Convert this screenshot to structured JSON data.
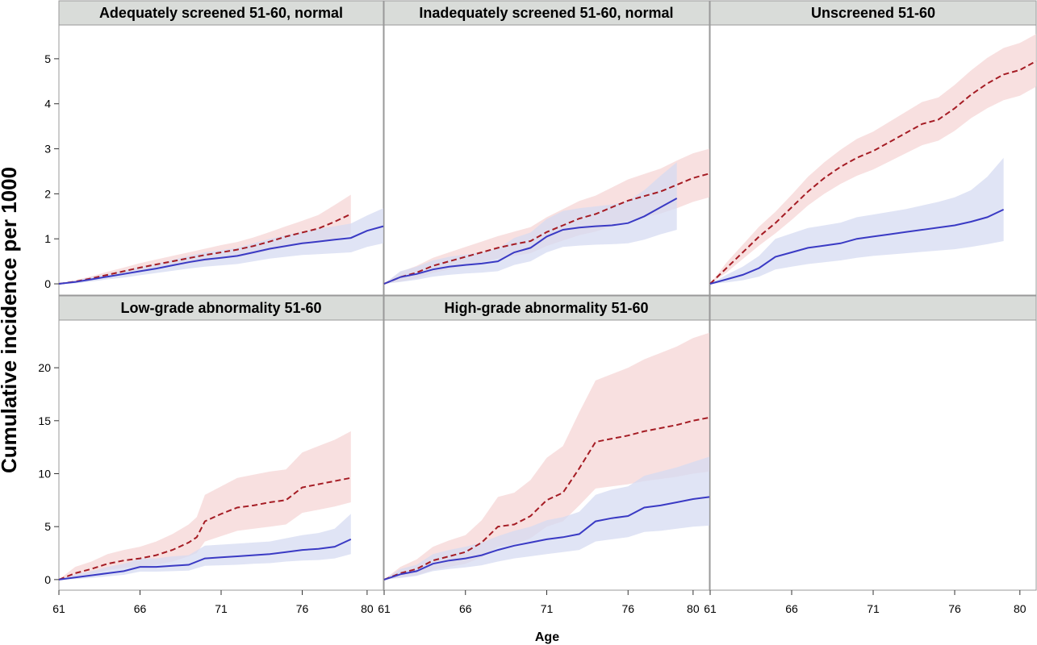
{
  "figure": {
    "ylabel": "Cumulative incidence per 1000",
    "xlabel": "Age"
  },
  "colors": {
    "series_a_line": "#a51c24",
    "series_a_band": "#f5d6d6",
    "series_b_line": "#3a3ac4",
    "series_b_band": "#d6dbf1",
    "strip_fill": "#d9dcd9",
    "panel_border": "#999999"
  },
  "chart_data": [
    {
      "type": "line",
      "title": "Adequately screened 51-60, normal",
      "xlim": [
        61,
        81
      ],
      "ylim": [
        -0.25,
        5.75
      ],
      "xticks": [
        61,
        66,
        71,
        76,
        80
      ],
      "yticks": [
        0,
        1,
        2,
        3,
        4,
        5
      ],
      "series": [
        {
          "style": "dashed",
          "x": [
            61,
            62,
            63,
            64,
            65,
            66,
            67,
            68,
            69,
            70,
            71,
            72,
            73,
            74,
            75,
            76,
            77,
            78,
            79
          ],
          "y": [
            0.0,
            0.05,
            0.12,
            0.2,
            0.28,
            0.36,
            0.43,
            0.5,
            0.57,
            0.64,
            0.7,
            0.76,
            0.84,
            0.94,
            1.05,
            1.14,
            1.23,
            1.38,
            1.55
          ],
          "lower": [
            0.0,
            0.02,
            0.08,
            0.14,
            0.2,
            0.27,
            0.33,
            0.39,
            0.45,
            0.5,
            0.55,
            0.6,
            0.66,
            0.74,
            0.82,
            0.88,
            0.93,
            1.0,
            1.1
          ],
          "upper": [
            0.0,
            0.08,
            0.17,
            0.27,
            0.36,
            0.46,
            0.54,
            0.62,
            0.7,
            0.78,
            0.86,
            0.93,
            1.03,
            1.15,
            1.28,
            1.4,
            1.53,
            1.75,
            1.98
          ]
        },
        {
          "style": "solid",
          "x": [
            61,
            62,
            63,
            64,
            65,
            66,
            67,
            68,
            69,
            70,
            71,
            72,
            73,
            74,
            75,
            76,
            77,
            78,
            79,
            80,
            81
          ],
          "y": [
            0.0,
            0.04,
            0.1,
            0.16,
            0.22,
            0.28,
            0.34,
            0.41,
            0.48,
            0.54,
            0.58,
            0.62,
            0.7,
            0.78,
            0.84,
            0.9,
            0.94,
            0.98,
            1.02,
            1.18,
            1.28
          ],
          "lower": [
            0.0,
            0.01,
            0.05,
            0.1,
            0.14,
            0.19,
            0.24,
            0.29,
            0.34,
            0.38,
            0.41,
            0.44,
            0.5,
            0.56,
            0.6,
            0.64,
            0.66,
            0.68,
            0.7,
            0.82,
            0.9
          ],
          "upper": [
            0.0,
            0.07,
            0.15,
            0.22,
            0.3,
            0.37,
            0.44,
            0.53,
            0.62,
            0.7,
            0.75,
            0.8,
            0.9,
            1.0,
            1.08,
            1.16,
            1.22,
            1.28,
            1.34,
            1.52,
            1.68
          ]
        }
      ]
    },
    {
      "type": "line",
      "title": "Inadequately screened 51-60, normal",
      "xlim": [
        61,
        81
      ],
      "ylim": [
        -0.25,
        5.75
      ],
      "xticks": [
        61,
        66,
        71,
        76,
        80
      ],
      "yticks": [
        0,
        1,
        2,
        3,
        4,
        5
      ],
      "series": [
        {
          "style": "dashed",
          "x": [
            61,
            62,
            63,
            64,
            65,
            66,
            67,
            68,
            69,
            70,
            71,
            72,
            73,
            74,
            75,
            76,
            77,
            78,
            79,
            80,
            81
          ],
          "y": [
            0.0,
            0.15,
            0.25,
            0.4,
            0.5,
            0.6,
            0.7,
            0.8,
            0.88,
            0.95,
            1.15,
            1.3,
            1.45,
            1.55,
            1.7,
            1.85,
            1.95,
            2.05,
            2.2,
            2.35,
            2.45
          ],
          "lower": [
            0.0,
            0.05,
            0.12,
            0.24,
            0.32,
            0.4,
            0.48,
            0.56,
            0.62,
            0.68,
            0.84,
            0.96,
            1.08,
            1.16,
            1.28,
            1.4,
            1.48,
            1.56,
            1.68,
            1.82,
            1.92
          ],
          "upper": [
            0.0,
            0.26,
            0.4,
            0.58,
            0.7,
            0.82,
            0.94,
            1.06,
            1.16,
            1.26,
            1.48,
            1.66,
            1.84,
            1.96,
            2.14,
            2.32,
            2.44,
            2.56,
            2.74,
            2.9,
            3.0
          ]
        },
        {
          "style": "solid",
          "x": [
            61,
            62,
            63,
            64,
            65,
            66,
            67,
            68,
            69,
            70,
            71,
            72,
            73,
            74,
            75,
            76,
            77,
            78,
            79
          ],
          "y": [
            0.0,
            0.15,
            0.22,
            0.32,
            0.38,
            0.42,
            0.45,
            0.5,
            0.7,
            0.8,
            1.05,
            1.2,
            1.25,
            1.28,
            1.3,
            1.35,
            1.5,
            1.7,
            1.9
          ],
          "lower": [
            0.0,
            0.04,
            0.09,
            0.16,
            0.2,
            0.23,
            0.25,
            0.28,
            0.42,
            0.5,
            0.7,
            0.82,
            0.85,
            0.87,
            0.88,
            0.9,
            0.98,
            1.1,
            1.2
          ],
          "upper": [
            0.0,
            0.28,
            0.38,
            0.52,
            0.6,
            0.65,
            0.7,
            0.78,
            1.02,
            1.14,
            1.44,
            1.62,
            1.68,
            1.72,
            1.76,
            1.84,
            2.08,
            2.4,
            2.7
          ]
        }
      ]
    },
    {
      "type": "line",
      "title": "Unscreened 51-60",
      "xlim": [
        61,
        81
      ],
      "ylim": [
        -0.25,
        5.75
      ],
      "xticks": [
        61,
        66,
        71,
        76,
        80
      ],
      "yticks": [
        0,
        1,
        2,
        3,
        4,
        5
      ],
      "series": [
        {
          "style": "dashed",
          "x": [
            61,
            62,
            63,
            64,
            65,
            66,
            67,
            68,
            69,
            70,
            71,
            72,
            73,
            74,
            75,
            76,
            77,
            78,
            79,
            80,
            81
          ],
          "y": [
            0.0,
            0.35,
            0.7,
            1.05,
            1.35,
            1.7,
            2.05,
            2.35,
            2.6,
            2.8,
            2.95,
            3.15,
            3.35,
            3.55,
            3.65,
            3.9,
            4.2,
            4.45,
            4.65,
            4.75,
            4.95
          ],
          "lower": [
            0.0,
            0.25,
            0.55,
            0.85,
            1.12,
            1.42,
            1.74,
            2.0,
            2.22,
            2.4,
            2.54,
            2.72,
            2.9,
            3.08,
            3.18,
            3.4,
            3.68,
            3.9,
            4.08,
            4.18,
            4.38
          ],
          "upper": [
            0.0,
            0.47,
            0.87,
            1.27,
            1.6,
            1.98,
            2.38,
            2.7,
            2.98,
            3.22,
            3.38,
            3.6,
            3.82,
            4.04,
            4.14,
            4.42,
            4.74,
            5.02,
            5.24,
            5.35,
            5.55
          ]
        },
        {
          "style": "solid",
          "x": [
            61,
            62,
            63,
            64,
            65,
            66,
            67,
            68,
            69,
            70,
            71,
            72,
            73,
            74,
            75,
            76,
            77,
            78,
            79
          ],
          "y": [
            0.0,
            0.1,
            0.2,
            0.35,
            0.6,
            0.7,
            0.8,
            0.85,
            0.9,
            1.0,
            1.05,
            1.1,
            1.15,
            1.2,
            1.25,
            1.3,
            1.38,
            1.48,
            1.65
          ],
          "lower": [
            0.0,
            0.03,
            0.08,
            0.16,
            0.32,
            0.38,
            0.44,
            0.48,
            0.52,
            0.58,
            0.62,
            0.65,
            0.68,
            0.71,
            0.74,
            0.77,
            0.82,
            0.88,
            0.95
          ],
          "upper": [
            0.0,
            0.2,
            0.38,
            0.62,
            1.0,
            1.12,
            1.24,
            1.3,
            1.36,
            1.48,
            1.54,
            1.6,
            1.66,
            1.74,
            1.82,
            1.92,
            2.08,
            2.38,
            2.8
          ]
        }
      ]
    },
    {
      "type": "line",
      "title": "Low-grade abnormality 51-60",
      "xlim": [
        61,
        81
      ],
      "ylim": [
        -1,
        24.5
      ],
      "xticks": [
        61,
        66,
        71,
        76,
        80
      ],
      "yticks": [
        0,
        5,
        10,
        15,
        20
      ],
      "series": [
        {
          "style": "dashed",
          "x": [
            61,
            62,
            63,
            64,
            65,
            66,
            67,
            68,
            69,
            69.5,
            70,
            71,
            72,
            73,
            74,
            75,
            76,
            77,
            78,
            79
          ],
          "y": [
            0.0,
            0.6,
            1.0,
            1.5,
            1.8,
            2.0,
            2.3,
            2.8,
            3.5,
            4.0,
            5.5,
            6.2,
            6.8,
            7.0,
            7.3,
            7.5,
            8.7,
            9.0,
            9.3,
            9.6
          ],
          "lower": [
            0.0,
            0.2,
            0.5,
            0.9,
            1.1,
            1.2,
            1.4,
            1.7,
            2.2,
            2.5,
            3.6,
            4.1,
            4.6,
            4.8,
            5.0,
            5.2,
            6.3,
            6.6,
            6.9,
            7.3
          ],
          "upper": [
            0.0,
            1.2,
            1.7,
            2.4,
            2.8,
            3.1,
            3.6,
            4.3,
            5.2,
            5.9,
            8.0,
            8.8,
            9.6,
            9.9,
            10.2,
            10.4,
            12.0,
            12.6,
            13.2,
            14.0
          ]
        },
        {
          "style": "solid",
          "x": [
            61,
            62,
            63,
            64,
            65,
            66,
            67,
            68,
            69,
            70,
            71,
            72,
            73,
            74,
            75,
            76,
            77,
            78,
            79
          ],
          "y": [
            0.0,
            0.2,
            0.4,
            0.6,
            0.8,
            1.2,
            1.2,
            1.3,
            1.4,
            2.0,
            2.1,
            2.2,
            2.3,
            2.4,
            2.6,
            2.8,
            2.9,
            3.1,
            3.8
          ],
          "lower": [
            0.0,
            0.05,
            0.15,
            0.3,
            0.45,
            0.75,
            0.75,
            0.8,
            0.85,
            1.3,
            1.35,
            1.4,
            1.5,
            1.55,
            1.7,
            1.8,
            1.85,
            2.0,
            2.4
          ],
          "upper": [
            0.0,
            0.5,
            0.8,
            1.2,
            1.5,
            2.0,
            2.0,
            2.2,
            2.3,
            3.2,
            3.3,
            3.4,
            3.5,
            3.6,
            3.9,
            4.2,
            4.4,
            4.8,
            6.2
          ]
        }
      ]
    },
    {
      "type": "line",
      "title": "High-grade abnormality 51-60",
      "xlim": [
        61,
        81
      ],
      "ylim": [
        -1,
        24.5
      ],
      "xticks": [
        61,
        66,
        71,
        76,
        80
      ],
      "yticks": [
        0,
        5,
        10,
        15,
        20
      ],
      "series": [
        {
          "style": "dashed",
          "x": [
            61,
            62,
            63,
            64,
            65,
            66,
            67,
            68,
            69,
            70,
            71,
            72,
            73,
            74,
            75,
            76,
            77,
            78,
            79,
            80,
            81
          ],
          "y": [
            0.0,
            0.6,
            1.0,
            1.8,
            2.2,
            2.6,
            3.5,
            5.0,
            5.2,
            6.0,
            7.5,
            8.2,
            10.5,
            13.0,
            13.3,
            13.6,
            14.0,
            14.3,
            14.6,
            15.0,
            15.3
          ],
          "lower": [
            0.0,
            0.2,
            0.4,
            0.9,
            1.2,
            1.5,
            2.1,
            3.1,
            3.3,
            3.9,
            5.0,
            5.5,
            7.0,
            8.6,
            8.8,
            9.0,
            9.3,
            9.5,
            9.7,
            10.0,
            10.2
          ],
          "upper": [
            0.0,
            1.2,
            1.9,
            3.1,
            3.7,
            4.2,
            5.6,
            7.8,
            8.2,
            9.4,
            11.5,
            12.6,
            15.8,
            18.8,
            19.4,
            20.0,
            20.8,
            21.4,
            22.0,
            22.8,
            23.3
          ]
        },
        {
          "style": "solid",
          "x": [
            61,
            62,
            63,
            64,
            65,
            66,
            67,
            68,
            69,
            70,
            71,
            72,
            73,
            74,
            75,
            76,
            77,
            78,
            79,
            80,
            81
          ],
          "y": [
            0.0,
            0.5,
            0.8,
            1.5,
            1.8,
            2.0,
            2.3,
            2.8,
            3.2,
            3.5,
            3.8,
            4.0,
            4.3,
            5.5,
            5.8,
            6.0,
            6.8,
            7.0,
            7.3,
            7.6,
            7.8
          ],
          "lower": [
            0.0,
            0.15,
            0.35,
            0.8,
            1.0,
            1.15,
            1.35,
            1.7,
            2.0,
            2.2,
            2.4,
            2.6,
            2.8,
            3.6,
            3.8,
            4.0,
            4.5,
            4.6,
            4.8,
            5.0,
            5.1
          ],
          "upper": [
            0.0,
            1.0,
            1.4,
            2.4,
            2.8,
            3.1,
            3.5,
            4.1,
            4.6,
            5.0,
            5.6,
            5.9,
            6.4,
            8.0,
            8.5,
            8.8,
            9.8,
            10.2,
            10.6,
            11.1,
            11.6
          ]
        }
      ]
    }
  ]
}
